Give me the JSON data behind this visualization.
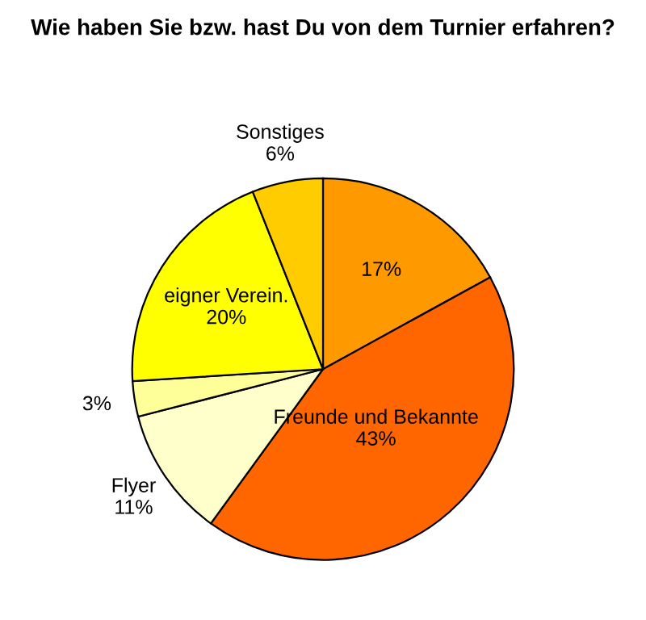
{
  "chart_data": {
    "type": "pie",
    "title": "Wie haben Sie bzw. hast Du von dem Turnier erfahren?",
    "categories": [
      null,
      "Freunde und Bekannte",
      "Flyer",
      null,
      "eigner Verein.",
      "Sonstiges"
    ],
    "values": [
      17,
      43,
      11,
      3,
      20,
      6
    ],
    "colors": [
      "#ff9900",
      "#ff6600",
      "#ffffcc",
      "#ffff99",
      "#ffff00",
      "#ffcc00"
    ],
    "value_labels": [
      "17%",
      "43%",
      "11%",
      "3%",
      "20%",
      "6%"
    ]
  }
}
